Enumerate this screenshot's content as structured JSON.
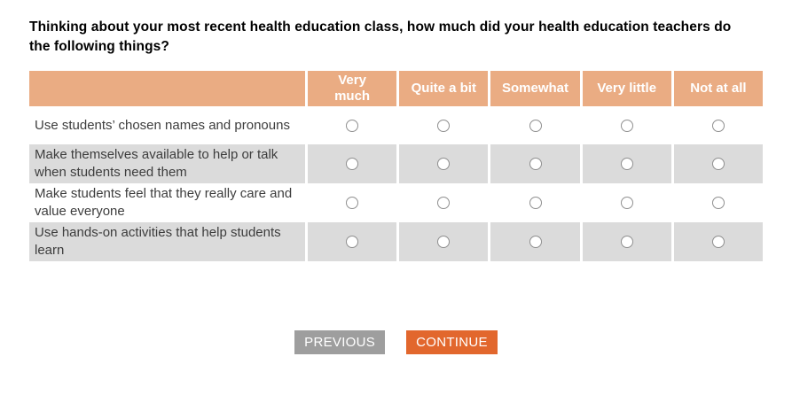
{
  "question": {
    "title": "Thinking about your most recent health education class, how much did your health education teachers do the following things?"
  },
  "table": {
    "columns": [
      "Very\nmuch",
      "Quite a bit",
      "Somewhat",
      "Very little",
      "Not at all"
    ],
    "rows": [
      {
        "label": "Use students’ chosen names and pronouns"
      },
      {
        "label": "Make themselves available to help or talk when students need them"
      },
      {
        "label": "Make students feel that they really care and value everyone"
      },
      {
        "label": "Use hands-on activities that help students learn"
      }
    ],
    "selected": null
  },
  "buttons": {
    "previous": "PREVIOUS",
    "continue": "CONTINUE"
  },
  "colors": {
    "header_bg": "#eaac83",
    "alt_row_bg": "#dbdbdb",
    "previous_bg": "#9e9e9e",
    "continue_bg": "#e2672d",
    "header_text": "#ffffff",
    "row_text": "#3d3d3d"
  }
}
